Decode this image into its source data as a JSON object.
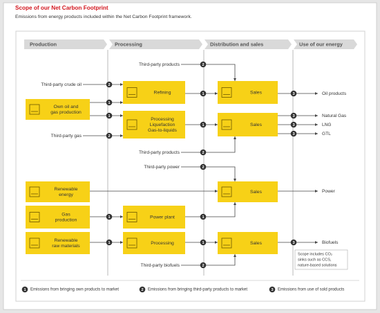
{
  "title": "Scope of our Net Carbon Footprint",
  "subtitle": "Emissions from energy products included within the Net Carbon Footprint framework.",
  "stages": [
    "Production",
    "Processing",
    "Distribution and sales",
    "Use of our energy"
  ],
  "nodes": [
    {
      "lines": [
        "Own oil and",
        "gas production"
      ]
    },
    {
      "lines": [
        "Refining"
      ]
    },
    {
      "lines": [
        "Processing",
        "Liquefaction",
        "Gas-to-liquids"
      ]
    },
    {
      "lines": [
        "Sales"
      ]
    },
    {
      "lines": [
        "Sales"
      ]
    },
    {
      "lines": [
        "Renewable",
        "energy"
      ]
    },
    {
      "lines": [
        "Sales"
      ]
    },
    {
      "lines": [
        "Gas",
        "production"
      ]
    },
    {
      "lines": [
        "Power plant"
      ]
    },
    {
      "lines": [
        "Renewable",
        "raw materials"
      ]
    },
    {
      "lines": [
        "Processing"
      ]
    },
    {
      "lines": [
        "Sales"
      ]
    }
  ],
  "inputs": [
    "Third-party crude oil",
    "Third-party products",
    "Third-party gas",
    "Third-party products",
    "Third-party power",
    "Third-party biofuels"
  ],
  "outputs": [
    "Oil products",
    "Natural Gas",
    "LNG",
    "GTL",
    "Power",
    "Biofuels"
  ],
  "note": [
    "Scope includes CO₂",
    "sinks such as CCS,",
    "nature-based solutions"
  ],
  "legend": [
    {
      "number": "1",
      "text": "Emissions from bringing own products to market"
    },
    {
      "number": "2",
      "text": "Emissions from bringing third-party products to market"
    },
    {
      "number": "3",
      "text": "Emissions from use of sold products"
    }
  ]
}
